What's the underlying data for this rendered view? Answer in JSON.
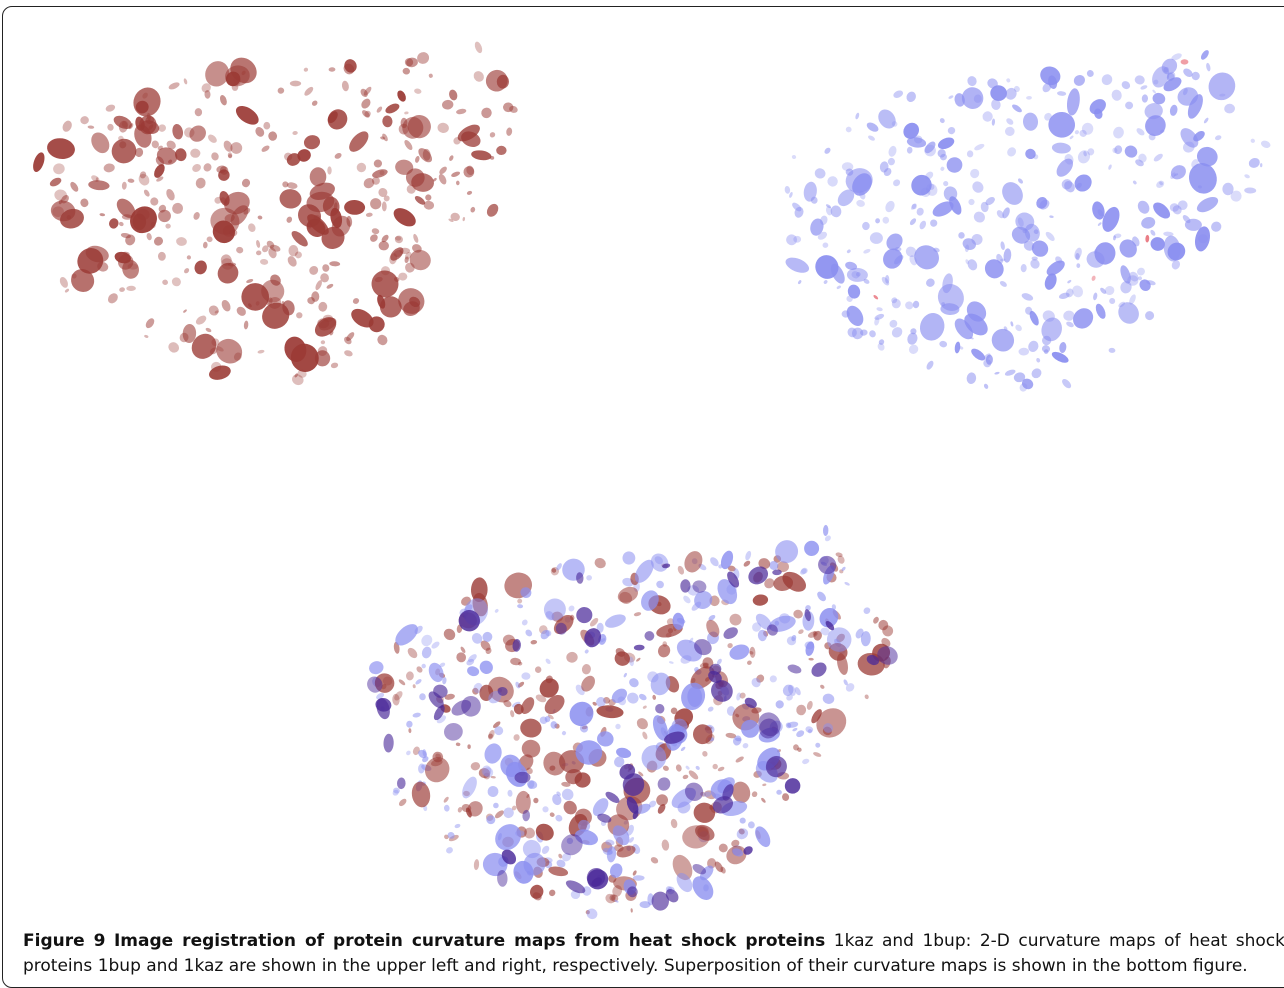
{
  "figure": {
    "label": "Figure 9",
    "title": "Image registration of protein curvature maps from heat shock proteins",
    "text": "1kaz and 1bup: 2-D curvature maps of heat shock proteins 1bup and 1kaz are shown in the upper left and right, respectively. Superposition of their curvature maps is shown in the bottom figure."
  },
  "colors": {
    "map_1bup": "#9b3a35",
    "map_1kaz": "#8a8ef0",
    "overlap": "#4b2a9a",
    "accent_red": "#e8707a"
  }
}
